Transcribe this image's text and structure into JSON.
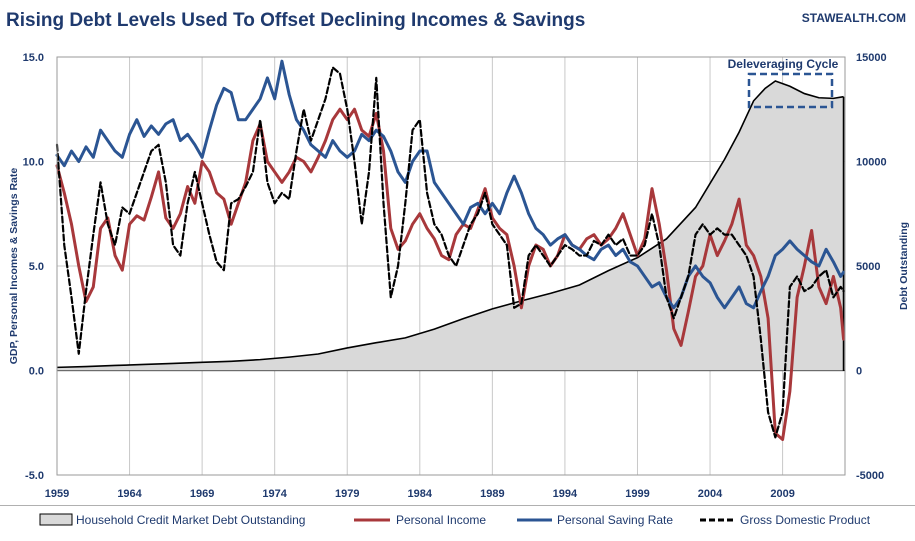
{
  "chart_data": {
    "type": "line",
    "title": "Rising Debt Levels Used To Offset Declining Incomes & Savings",
    "brand": "STAWEALTH.COM",
    "ylabel_left": "GDP, Personal Incomes & Savings Rate",
    "ylabel_right": "Debt Outstanding",
    "xlim": [
      1959,
      2013.3
    ],
    "ylim_left": [
      -5,
      15
    ],
    "ylim_right": [
      -5000,
      15000
    ],
    "x_ticks": [
      "1959",
      "1964",
      "1969",
      "1974",
      "1979",
      "1984",
      "1989",
      "1994",
      "1999",
      "2004",
      "2009"
    ],
    "y_ticks_left": [
      "15.0",
      "10.0",
      "5.0",
      "0.0",
      "-5.0"
    ],
    "y_ticks_right": [
      "15000",
      "10000",
      "5000",
      "0",
      "-5000"
    ],
    "annotation": "Deleveraging Cycle",
    "grid": true,
    "legend_position": "bottom",
    "colors": {
      "title": "#1f3a6e",
      "debt_fill": "#d9d9d9",
      "debt_line": "#000000",
      "income": "#a8383b",
      "saving": "#2b5593",
      "gdp": "#000000",
      "annotation_box": "#2b5593"
    },
    "series": [
      {
        "name": "Household Credit Market Debt Outstanding",
        "axis": "right",
        "style": "area",
        "x": [
          1959,
          1961,
          1963,
          1965,
          1967,
          1969,
          1971,
          1973,
          1975,
          1977,
          1979,
          1981,
          1983,
          1985,
          1987,
          1989,
          1991,
          1993,
          1995,
          1997,
          1999,
          2001,
          2003,
          2004,
          2005,
          2006,
          2007,
          2007.8,
          2008.5,
          2009.5,
          2010.5,
          2011.5,
          2012.5,
          2013.2
        ],
        "values": [
          150,
          190,
          240,
          290,
          340,
          390,
          440,
          520,
          640,
          790,
          1080,
          1330,
          1560,
          1980,
          2480,
          2950,
          3330,
          3690,
          4090,
          4780,
          5400,
          6300,
          7800,
          8950,
          10100,
          11400,
          12900,
          13500,
          13850,
          13600,
          13250,
          13050,
          13020,
          13100
        ]
      },
      {
        "name": "Personal Income",
        "axis": "left",
        "style": "line",
        "x": [
          1959,
          1959.5,
          1960,
          1960.5,
          1961,
          1961.5,
          1962,
          1962.5,
          1963,
          1963.5,
          1964,
          1964.5,
          1965,
          1965.5,
          1966,
          1966.5,
          1967,
          1967.5,
          1968,
          1968.5,
          1969,
          1969.5,
          1970,
          1970.5,
          1971,
          1971.5,
          1972,
          1972.5,
          1973,
          1973.5,
          1974,
          1974.5,
          1975,
          1975.5,
          1976,
          1976.5,
          1977,
          1977.5,
          1978,
          1978.5,
          1979,
          1979.5,
          1980,
          1980.5,
          1981,
          1981.5,
          1982,
          1982.5,
          1983,
          1983.5,
          1984,
          1984.5,
          1985,
          1985.5,
          1986,
          1986.5,
          1987,
          1987.5,
          1988,
          1988.5,
          1989,
          1989.5,
          1990,
          1990.5,
          1991,
          1991.5,
          1992,
          1992.5,
          1993,
          1993.5,
          1994,
          1994.5,
          1995,
          1995.5,
          1996,
          1996.5,
          1997,
          1997.5,
          1998,
          1998.5,
          1999,
          1999.5,
          2000,
          2000.5,
          2001,
          2001.5,
          2002,
          2002.5,
          2003,
          2003.5,
          2004,
          2004.5,
          2005,
          2005.5,
          2006,
          2006.5,
          2007,
          2007.5,
          2008,
          2008.5,
          2009,
          2009.5,
          2010,
          2010.5,
          2011,
          2011.5,
          2012,
          2012.5,
          2013,
          2013.2
        ],
        "values": [
          9.8,
          8.5,
          7.0,
          5.0,
          3.3,
          4.0,
          6.8,
          7.3,
          5.5,
          4.8,
          7.0,
          7.4,
          7.2,
          8.3,
          9.5,
          7.3,
          6.8,
          7.5,
          8.8,
          8.0,
          10.0,
          9.5,
          8.5,
          8.2,
          7.0,
          8.0,
          9.0,
          11.0,
          11.8,
          10.0,
          9.5,
          9.0,
          9.5,
          10.2,
          10.0,
          9.5,
          10.2,
          11.0,
          12.0,
          12.5,
          12.0,
          12.5,
          11.5,
          11.2,
          12.3,
          10.5,
          6.8,
          5.8,
          6.2,
          7.0,
          7.5,
          6.8,
          6.3,
          5.5,
          5.3,
          6.5,
          7.0,
          6.8,
          7.7,
          8.7,
          7.3,
          6.8,
          6.5,
          5.0,
          3.0,
          5.0,
          6.0,
          5.8,
          5.0,
          5.5,
          6.5,
          6.0,
          5.8,
          6.3,
          6.5,
          6.0,
          6.3,
          6.8,
          7.5,
          6.5,
          5.5,
          6.3,
          8.7,
          7.0,
          4.8,
          2.0,
          1.2,
          2.8,
          4.5,
          5.0,
          6.5,
          5.5,
          6.2,
          7.0,
          8.2,
          6.0,
          5.5,
          4.5,
          2.5,
          -3.0,
          -3.3,
          -1.0,
          3.5,
          5.0,
          6.7,
          4.0,
          3.2,
          4.5,
          3.0,
          1.5
        ]
      },
      {
        "name": "Personal Saving Rate",
        "axis": "left",
        "style": "line",
        "x": [
          1959,
          1959.5,
          1960,
          1960.5,
          1961,
          1961.5,
          1962,
          1962.5,
          1963,
          1963.5,
          1964,
          1964.5,
          1965,
          1965.5,
          1966,
          1966.5,
          1967,
          1967.5,
          1968,
          1968.5,
          1969,
          1969.5,
          1970,
          1970.5,
          1971,
          1971.5,
          1972,
          1972.5,
          1973,
          1973.5,
          1974,
          1974.5,
          1975,
          1975.5,
          1976,
          1976.5,
          1977,
          1977.5,
          1978,
          1978.5,
          1979,
          1979.5,
          1980,
          1980.5,
          1981,
          1981.5,
          1982,
          1982.5,
          1983,
          1983.5,
          1984,
          1984.5,
          1985,
          1985.5,
          1986,
          1986.5,
          1987,
          1987.5,
          1988,
          1988.5,
          1989,
          1989.5,
          1990,
          1990.5,
          1991,
          1991.5,
          1992,
          1992.5,
          1993,
          1993.5,
          1994,
          1994.5,
          1995,
          1995.5,
          1996,
          1996.5,
          1997,
          1997.5,
          1998,
          1998.5,
          1999,
          1999.5,
          2000,
          2000.5,
          2001,
          2001.5,
          2002,
          2002.5,
          2003,
          2003.5,
          2004,
          2004.5,
          2005,
          2005.5,
          2006,
          2006.5,
          2007,
          2007.5,
          2008,
          2008.5,
          2009,
          2009.5,
          2010,
          2010.5,
          2011,
          2011.5,
          2012,
          2012.5,
          2013,
          2013.2
        ],
        "values": [
          10.3,
          9.8,
          10.5,
          10.0,
          10.7,
          10.2,
          11.5,
          11.0,
          10.5,
          10.2,
          11.3,
          12.0,
          11.2,
          11.7,
          11.3,
          11.8,
          12.0,
          11.0,
          11.3,
          10.8,
          10.2,
          11.5,
          12.7,
          13.5,
          13.3,
          12.0,
          12.0,
          12.5,
          13.0,
          14.0,
          13.0,
          14.8,
          13.2,
          12.0,
          11.5,
          10.8,
          10.5,
          10.2,
          11.0,
          10.5,
          10.2,
          10.5,
          11.3,
          11.0,
          11.5,
          11.2,
          10.5,
          9.5,
          9.0,
          10.0,
          10.5,
          10.5,
          9.0,
          8.5,
          8.0,
          7.5,
          7.0,
          7.8,
          8.0,
          7.5,
          8.0,
          7.5,
          8.5,
          9.3,
          8.5,
          7.5,
          6.8,
          6.5,
          6.0,
          6.3,
          6.5,
          6.0,
          5.8,
          5.5,
          5.3,
          5.8,
          6.0,
          5.5,
          5.8,
          5.2,
          5.0,
          4.5,
          4.0,
          4.2,
          3.5,
          3.0,
          3.5,
          4.5,
          5.0,
          4.5,
          4.2,
          3.5,
          3.0,
          3.5,
          4.0,
          3.2,
          3.0,
          3.8,
          4.5,
          5.5,
          5.8,
          6.2,
          5.8,
          5.5,
          5.2,
          5.0,
          5.8,
          5.2,
          4.5,
          4.7
        ]
      },
      {
        "name": "Gross Domestic Product",
        "axis": "left",
        "style": "dashed",
        "x": [
          1959,
          1959.5,
          1960,
          1960.5,
          1961,
          1961.5,
          1962,
          1962.5,
          1963,
          1963.5,
          1964,
          1964.5,
          1965,
          1965.5,
          1966,
          1966.5,
          1967,
          1967.5,
          1968,
          1968.5,
          1969,
          1969.5,
          1970,
          1970.5,
          1971,
          1971.5,
          1972,
          1972.5,
          1973,
          1973.5,
          1974,
          1974.5,
          1975,
          1975.5,
          1976,
          1976.5,
          1977,
          1977.5,
          1978,
          1978.5,
          1979,
          1979.5,
          1980,
          1980.5,
          1981,
          1981.5,
          1982,
          1982.5,
          1983,
          1983.5,
          1984,
          1984.5,
          1985,
          1985.5,
          1986,
          1986.5,
          1987,
          1987.5,
          1988,
          1988.5,
          1989,
          1989.5,
          1990,
          1990.5,
          1991,
          1991.5,
          1992,
          1992.5,
          1993,
          1993.5,
          1994,
          1994.5,
          1995,
          1995.5,
          1996,
          1996.5,
          1997,
          1997.5,
          1998,
          1998.5,
          1999,
          1999.5,
          2000,
          2000.5,
          2001,
          2001.5,
          2002,
          2002.5,
          2003,
          2003.5,
          2004,
          2004.5,
          2005,
          2005.5,
          2006,
          2006.5,
          2007,
          2007.5,
          2008,
          2008.5,
          2009,
          2009.5,
          2010,
          2010.5,
          2011,
          2011.5,
          2012,
          2012.5,
          2013,
          2013.2
        ],
        "values": [
          10.8,
          6.0,
          3.5,
          0.8,
          3.8,
          6.5,
          9.0,
          7.0,
          6.0,
          7.8,
          7.5,
          8.5,
          9.5,
          10.5,
          10.8,
          9.0,
          6.0,
          5.5,
          8.0,
          9.5,
          8.0,
          6.5,
          5.2,
          4.8,
          8.0,
          8.2,
          8.8,
          9.5,
          12.0,
          9.0,
          8.0,
          8.5,
          8.2,
          10.5,
          12.5,
          11.0,
          12.0,
          13.0,
          14.5,
          14.2,
          12.5,
          10.0,
          7.0,
          9.5,
          14.0,
          8.0,
          3.5,
          5.0,
          8.0,
          11.5,
          12.0,
          8.5,
          7.0,
          6.5,
          5.5,
          5.0,
          6.0,
          7.0,
          7.5,
          8.5,
          7.0,
          6.5,
          6.0,
          3.0,
          3.2,
          5.5,
          6.0,
          5.5,
          5.0,
          5.5,
          6.0,
          5.8,
          5.5,
          5.5,
          6.2,
          6.0,
          6.5,
          6.0,
          6.3,
          5.5,
          5.5,
          6.0,
          7.5,
          6.0,
          3.5,
          2.5,
          3.5,
          4.5,
          6.5,
          7.0,
          6.5,
          6.8,
          6.5,
          6.5,
          6.0,
          5.5,
          4.5,
          1.5,
          -2.0,
          -3.2,
          -2.0,
          4.0,
          4.5,
          3.8,
          4.0,
          4.5,
          4.8,
          3.5,
          4.0,
          3.8
        ]
      }
    ]
  }
}
